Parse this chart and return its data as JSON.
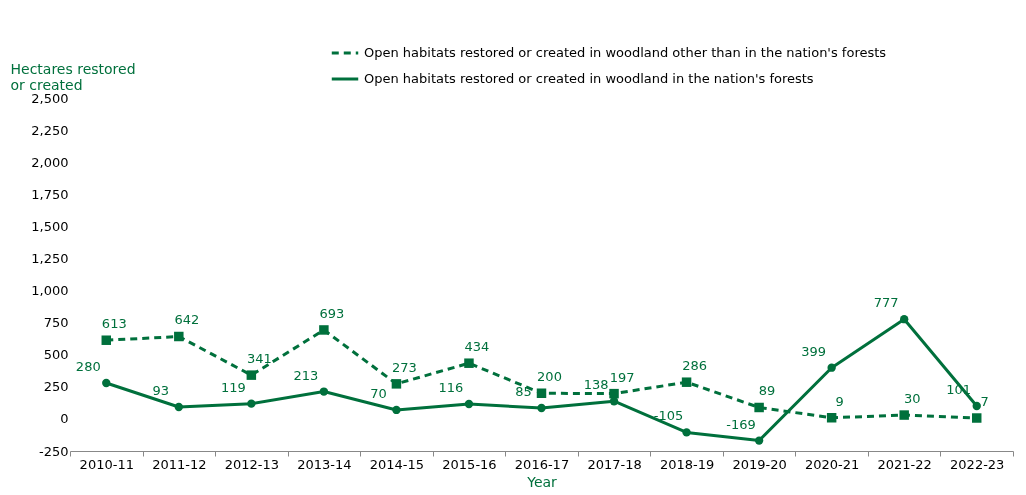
{
  "chart_data": {
    "type": "line",
    "xlabel": "Year",
    "ylabel": "Hectares restored or created",
    "categories": [
      "2010-11",
      "2011-12",
      "2012-13",
      "2013-14",
      "2014-15",
      "2015-16",
      "2016-17",
      "2017-18",
      "2018-19",
      "2019-20",
      "2020-21",
      "2021-22",
      "2022-23"
    ],
    "series": [
      {
        "name": "Open habitats restored or created in woodland other than in the nation's forests",
        "color": "#00703c",
        "marker": "square",
        "line_style": "dashed",
        "values": [
          613,
          642,
          341,
          693,
          273,
          434,
          200,
          197,
          286,
          89,
          9,
          30,
          7
        ]
      },
      {
        "name": "Open habitats restored or created in woodland in the nation's forests",
        "color": "#00703c",
        "marker": "circle",
        "line_style": "solid",
        "values": [
          280,
          93,
          119,
          213,
          70,
          116,
          85,
          138,
          -105,
          -169,
          399,
          777,
          101
        ]
      }
    ],
    "ylim": [
      -250,
      2500
    ],
    "yticks": [
      -250,
      0,
      250,
      500,
      750,
      {
        "value": 1000,
        "label": "1,000"
      },
      {
        "value": 1250,
        "label": "1,250"
      },
      {
        "value": 1500,
        "label": "1,500"
      },
      {
        "value": 1750,
        "label": "1,750"
      },
      {
        "value": 2000,
        "label": "2,000"
      },
      {
        "value": 2250,
        "label": "2,250"
      },
      {
        "value": 2500,
        "label": "2,500"
      }
    ],
    "grid": false,
    "legend": "top right",
    "data_labels": true
  }
}
